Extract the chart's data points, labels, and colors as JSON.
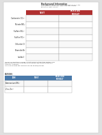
{
  "title_text": "Background Information",
  "intro_text": "A list of every chemical ion you are required to know for the\nexam at the concentrations listed at the 'test' column\nand in the 'result' column.",
  "table1_header": [
    "TEST",
    "POSITIVE\nRESULT"
  ],
  "table1_rows": [
    "Carbonate CO₃²⁻",
    "Nitrate NO₃⁻",
    "Sulfate SO₄²⁻",
    "Sulfite SO₃²⁻",
    "Chloride Cl⁻",
    "Bromide Br⁻",
    "Iodide I⁻"
  ],
  "mid_text": "ANIONS are negatively charged ions with more electrons than protons. They\nare dissolved in the solution during electrolysis, and are made from most\nHNO3 etc. chemicals.\n•Chlorine, Bromide and Iodide as a known as Halid/Hali ions.",
  "cations_label": "CATIONS",
  "table2_header": [
    "ION",
    "TEST",
    "POSITIVE\nRESULT"
  ],
  "table2_rows": [
    "Ammonium NH₄⁺",
    "Zinc Zn²⁺"
  ],
  "header_bg": "#b03030",
  "header_text_color": "#ffffff",
  "table2_header_bg": "#4a7aaa",
  "table2_header_text_color": "#ffffff",
  "row_bg_even": "#f8f8f8",
  "row_bg_odd": "#ffffff",
  "border_color": "#999999",
  "bg_color": "#e0e0e0",
  "page_color": "#ffffff",
  "text_color": "#222222",
  "mid_text_color": "#333333",
  "cations_label_color": "#555555"
}
